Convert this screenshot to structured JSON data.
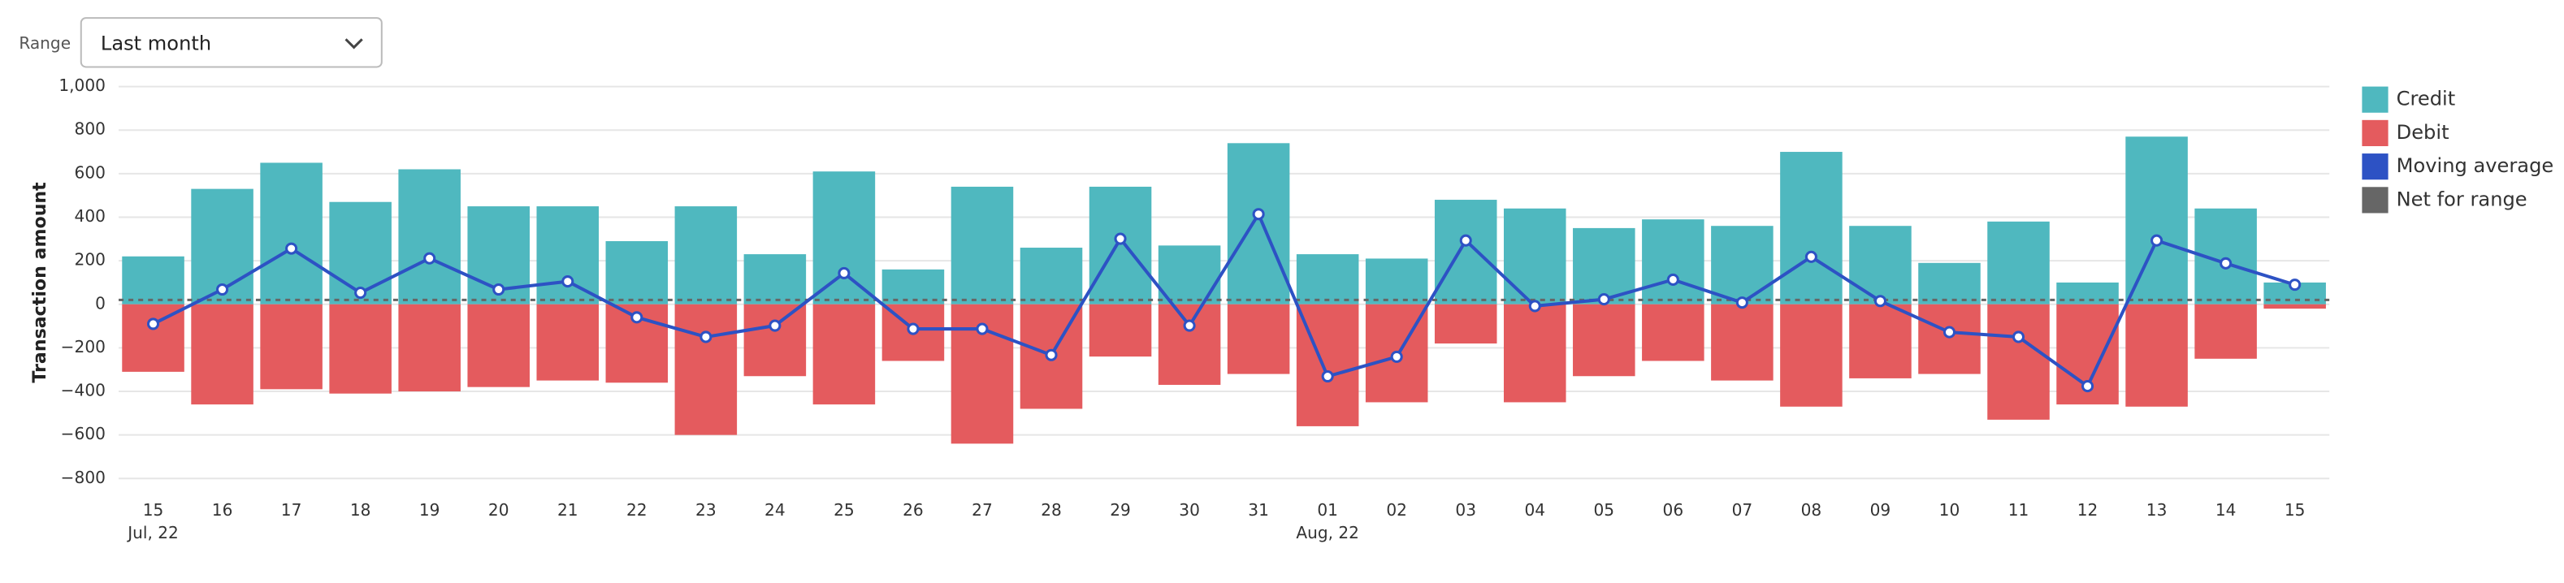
{
  "range_label": "Range",
  "range_value": "Last month",
  "chart_data": {
    "type": "bar",
    "y_label": "Transaction amount",
    "categories": [
      "15",
      "16",
      "17",
      "18",
      "19",
      "20",
      "21",
      "22",
      "23",
      "24",
      "25",
      "26",
      "27",
      "28",
      "29",
      "30",
      "31",
      "01",
      "02",
      "03",
      "04",
      "05",
      "06",
      "07",
      "08",
      "09",
      "10",
      "11",
      "12",
      "13",
      "14",
      "15"
    ],
    "month_labels": [
      "Jul, 22",
      null,
      null,
      null,
      null,
      null,
      null,
      null,
      null,
      null,
      null,
      null,
      null,
      null,
      null,
      null,
      null,
      "Aug, 22",
      null,
      null,
      null,
      null,
      null,
      null,
      null,
      null,
      null,
      null,
      null,
      null,
      null,
      null
    ],
    "series": [
      {
        "name": "Credit",
        "color": "#4fb8bf",
        "kind": "bar",
        "values": [
          220,
          530,
          650,
          470,
          620,
          450,
          450,
          290,
          450,
          230,
          610,
          160,
          540,
          260,
          540,
          270,
          740,
          230,
          210,
          480,
          440,
          350,
          390,
          360,
          700,
          360,
          190,
          380,
          100,
          770,
          440,
          100
        ]
      },
      {
        "name": "Debit",
        "color": "#e45b5e",
        "kind": "bar",
        "values": [
          -310,
          -460,
          -390,
          -410,
          -400,
          -380,
          -350,
          -360,
          -600,
          -330,
          -460,
          -260,
          -640,
          -480,
          -240,
          -370,
          -320,
          -560,
          -450,
          -180,
          -450,
          -330,
          -260,
          -350,
          -470,
          -340,
          -320,
          -530,
          -460,
          -470,
          -250,
          -20
        ]
      },
      {
        "name": "Moving average",
        "color": "#2d52c4",
        "kind": "line",
        "values": [
          -90,
          68,
          256,
          53,
          211,
          68,
          105,
          -60,
          -150,
          -98,
          143,
          -113,
          -113,
          -233,
          301,
          -98,
          414,
          -331,
          -241,
          293,
          -8,
          23,
          113,
          8,
          218,
          15,
          -128,
          -150,
          -376,
          293,
          188,
          90
        ]
      },
      {
        "name": "Net for range",
        "color": "#666666",
        "kind": "hline",
        "value": 20
      }
    ],
    "ylim": [
      -800,
      1000
    ],
    "yticks": [
      {
        "value": -800,
        "label": "−800"
      },
      {
        "value": -600,
        "label": "−600"
      },
      {
        "value": -400,
        "label": "−400"
      },
      {
        "value": -200,
        "label": "−200"
      },
      0,
      200,
      400,
      600,
      800,
      {
        "value": 1000,
        "label": "1,000"
      }
    ],
    "grid": true,
    "legend": "right"
  }
}
